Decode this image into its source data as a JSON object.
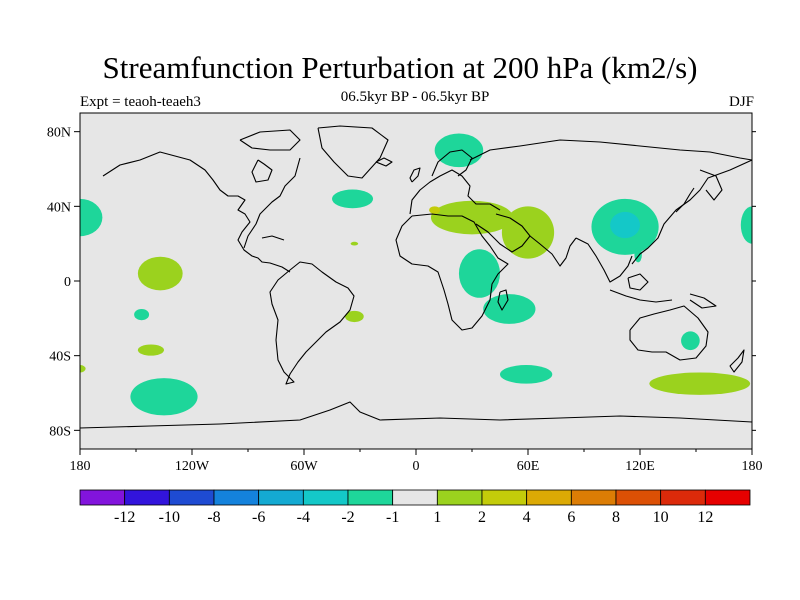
{
  "title": "Streamfunction Perturbation at 200 hPa (km2/s)",
  "left_string": "Expt = teaoh-teaeh3",
  "center_string": "06.5kyr BP - 06.5kyr BP",
  "right_string": "DJF",
  "map": {
    "projection": "cylindrical-equidistant",
    "lon_range": [
      -180,
      180
    ],
    "lat_range": [
      -90,
      90
    ],
    "background_color": "#e6e6e6",
    "coastline_color": "#000000"
  },
  "axes": {
    "y_ticks": [
      {
        "lat": 80,
        "label": "80N"
      },
      {
        "lat": 40,
        "label": "40N"
      },
      {
        "lat": 0,
        "label": "0"
      },
      {
        "lat": -40,
        "label": "40S"
      },
      {
        "lat": -80,
        "label": "80S"
      }
    ],
    "x_ticks": [
      {
        "lon": -180,
        "label": "180"
      },
      {
        "lon": -120,
        "label": "120W"
      },
      {
        "lon": -60,
        "label": "60W"
      },
      {
        "lon": 0,
        "label": "0"
      },
      {
        "lon": 60,
        "label": "60E"
      },
      {
        "lon": 120,
        "label": "120E"
      },
      {
        "lon": 180,
        "label": "180"
      }
    ]
  },
  "chart_data": {
    "type": "heatmap",
    "title": "Streamfunction Perturbation at 200 hPa (km2/s)",
    "season": "DJF",
    "levels": [
      -12,
      -10,
      -8,
      -6,
      -4,
      -2,
      -1,
      1,
      2,
      4,
      6,
      8,
      10,
      12
    ],
    "colorbar_labels": [
      "-12",
      "-10",
      "-8",
      "-6",
      "-4",
      "-2",
      "-1",
      "1",
      "2",
      "4",
      "6",
      "8",
      "10",
      "12"
    ],
    "colorbar_colors": [
      "#8214dc",
      "#3214dc",
      "#1e4bd2",
      "#1482dc",
      "#14aad2",
      "#14c8c8",
      "#1ed69a",
      "#e6e6e6",
      "#9bd21e",
      "#c3cc0a",
      "#dcaa05",
      "#dc7d05",
      "#dc5005",
      "#dc2a0a",
      "#e60000"
    ],
    "regions": [
      {
        "lon": -180,
        "lat": 34,
        "rlon": 12,
        "rlat": 10,
        "level": "-2"
      },
      {
        "lon": 180,
        "lat": 30,
        "rlon": 6,
        "rlat": 10,
        "level": "-2"
      },
      {
        "lon": -137,
        "lat": 4,
        "rlon": 12,
        "rlat": 9,
        "level": "2"
      },
      {
        "lon": -147,
        "lat": -18,
        "rlon": 4,
        "rlat": 3,
        "level": "-2"
      },
      {
        "lon": -142,
        "lat": -37,
        "rlon": 7,
        "rlat": 3,
        "level": "2"
      },
      {
        "lon": -180,
        "lat": -47,
        "rlon": 3,
        "rlat": 2,
        "level": "2"
      },
      {
        "lon": -135,
        "lat": -62,
        "rlon": 18,
        "rlat": 10,
        "level": "-2"
      },
      {
        "lon": -34,
        "lat": 44,
        "rlon": 11,
        "rlat": 5,
        "level": "-2"
      },
      {
        "lon": -33,
        "lat": 20,
        "rlon": 2,
        "rlat": 1,
        "level": "2"
      },
      {
        "lon": -33,
        "lat": -19,
        "rlon": 5,
        "rlat": 3,
        "level": "2"
      },
      {
        "lon": 23,
        "lat": 70,
        "rlon": 13,
        "rlat": 9,
        "level": "-2"
      },
      {
        "lon": 30,
        "lat": 34,
        "rlon": 22,
        "rlat": 9,
        "level": "2"
      },
      {
        "lon": 60,
        "lat": 26,
        "rlon": 14,
        "rlat": 14,
        "level": "2"
      },
      {
        "lon": 10,
        "lat": 38,
        "rlon": 3,
        "rlat": 2,
        "level": "4"
      },
      {
        "lon": 34,
        "lat": 4,
        "rlon": 11,
        "rlat": 13,
        "level": "-2"
      },
      {
        "lon": 50,
        "lat": -15,
        "rlon": 14,
        "rlat": 8,
        "level": "-2"
      },
      {
        "lon": 112,
        "lat": 29,
        "rlon": 18,
        "rlat": 15,
        "level": "-2"
      },
      {
        "lon": 112,
        "lat": 30,
        "rlon": 8,
        "rlat": 7,
        "level": "-4"
      },
      {
        "lon": 119,
        "lat": 14,
        "rlon": 2,
        "rlat": 4,
        "level": "-2"
      },
      {
        "lon": 147,
        "lat": -32,
        "rlon": 5,
        "rlat": 5,
        "level": "-2"
      },
      {
        "lon": 59,
        "lat": -50,
        "rlon": 14,
        "rlat": 5,
        "level": "-2"
      },
      {
        "lon": 152,
        "lat": -55,
        "rlon": 27,
        "rlat": 6,
        "level": "2"
      }
    ]
  }
}
